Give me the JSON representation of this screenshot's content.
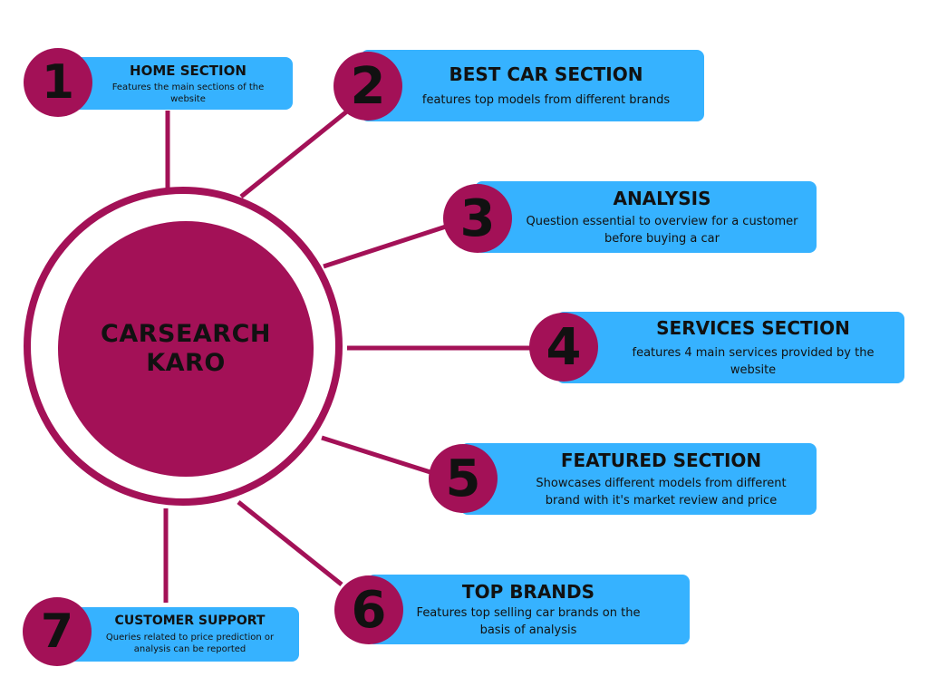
{
  "hub": {
    "title": "CARSEARCH KARO"
  },
  "sections": [
    {
      "number": "1",
      "title": "HOME SECTION",
      "description": "Features the main sections of the website"
    },
    {
      "number": "2",
      "title": "BEST CAR SECTION",
      "description": "features top models from different brands"
    },
    {
      "number": "3",
      "title": "ANALYSIS",
      "description": "Question essential to overview for a customer before buying a car"
    },
    {
      "number": "4",
      "title": "SERVICES SECTION",
      "description": "features 4 main services provided by the website"
    },
    {
      "number": "5",
      "title": "FEATURED SECTION",
      "description": "Showcases different models from different brand with it's market review and price"
    },
    {
      "number": "6",
      "title": "TOP BRANDS",
      "description": "Features top selling car brands on the basis of analysis"
    },
    {
      "number": "7",
      "title": "CUSTOMER SUPPORT",
      "description": "Queries related to price prediction or analysis can be reported"
    }
  ],
  "colors": {
    "accent": "#a31157",
    "card": "#36b2ff",
    "text": "#111111",
    "background": "#ffffff"
  }
}
